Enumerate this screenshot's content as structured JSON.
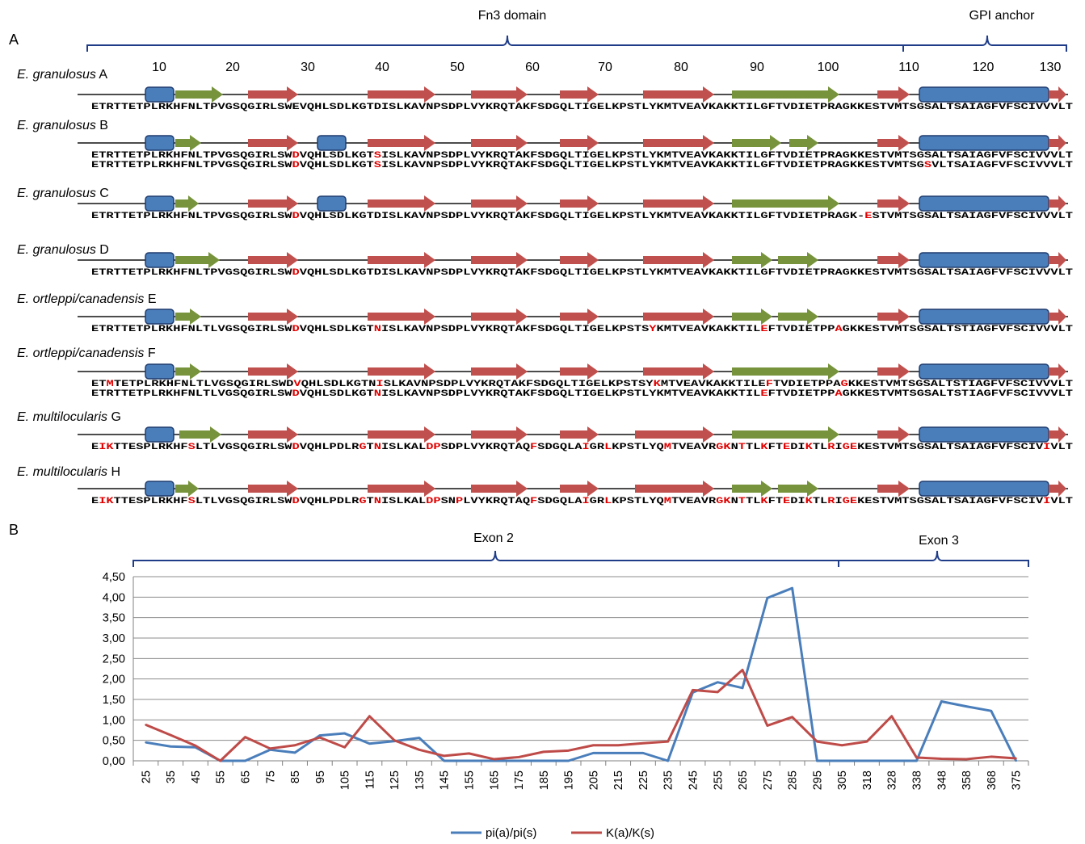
{
  "panels": {
    "a": "A",
    "b": "B"
  },
  "domains": {
    "fn3": "Fn3 domain",
    "gpi": "GPI anchor"
  },
  "positions": [
    "10",
    "20",
    "30",
    "40",
    "50",
    "60",
    "70",
    "80",
    "90",
    "100",
    "110",
    "120",
    "130"
  ],
  "colors": {
    "helix": "#4a7ebb",
    "strand_red": "#c0504d",
    "strand_green": "#77933c",
    "mutation": "#e00000",
    "line_blue": "#4a7ebb",
    "line_red": "#be4b48"
  },
  "rows": [
    {
      "label_italic": "E. granulosus",
      "label_suffix": " A",
      "features": [
        [
          "h",
          180,
          215
        ],
        [
          "g",
          217,
          276
        ],
        [
          "r",
          307,
          369
        ],
        [
          "r",
          455,
          539
        ],
        [
          "r",
          583,
          653
        ],
        [
          "r",
          693,
          741
        ],
        [
          "r",
          796,
          884
        ],
        [
          "g",
          906,
          1039
        ],
        [
          "r",
          1086,
          1126
        ],
        [
          "h",
          1138,
          1298
        ],
        [
          "r",
          1298,
          1320
        ]
      ],
      "seqs": [
        "ETRTTETPLRKHFNLTPVGSQGIRLSWEVQHLSDLKGTDISLKAVNPSDPLVYKRQTAKFSDGQLTIGELKPSTLYKMTVEAVKAKKTILGFTVDIETPRAGKKESTVMTSGSALTSAIAGFVFSCIVVVLT"
      ],
      "muts": [
        []
      ]
    },
    {
      "label_italic": "E. granulosus",
      "label_suffix": " B",
      "features": [
        [
          "h",
          180,
          215
        ],
        [
          "g",
          217,
          249
        ],
        [
          "r",
          307,
          369
        ],
        [
          "h",
          393,
          428
        ],
        [
          "r",
          455,
          539
        ],
        [
          "r",
          583,
          653
        ],
        [
          "r",
          693,
          741
        ],
        [
          "r",
          796,
          884
        ],
        [
          "g",
          906,
          967
        ],
        [
          "g",
          977,
          1013
        ],
        [
          "r",
          1086,
          1126
        ],
        [
          "h",
          1138,
          1298
        ],
        [
          "r",
          1298,
          1320
        ]
      ],
      "seqs": [
        "ETRTTETPLRKHFNLTPVGSQGIRLSWDVQHLSDLKGTSISLKAVNPSDPLVYKRQTAKFSDGQLTIGELKPSTLYKMTVEAVKAKKTILGFTVDIETPRAGKKESTVMTSGSALTSAIAGFVFSCIVVVLT",
        "ETRTTETPLRKHFNLTPVGSQGIRLSWDVQHLSDLKGTSISLKAVNPSDPLVYKRQTAKFSDGQLTIGELKPSTLYKMTVEAVKAKKTILGFTVDIETPRAGKKESTVMTSGSVLTSAIAGFVFSCIVVVLT"
      ],
      "muts": [
        [
          27,
          38
        ],
        [
          27,
          38,
          112
        ]
      ]
    },
    {
      "label_italic": "E. granulosus",
      "label_suffix": " C",
      "features": [
        [
          "h",
          180,
          215
        ],
        [
          "g",
          217,
          246
        ],
        [
          "r",
          307,
          369
        ],
        [
          "h",
          393,
          428
        ],
        [
          "r",
          455,
          539
        ],
        [
          "r",
          583,
          653
        ],
        [
          "r",
          693,
          741
        ],
        [
          "r",
          796,
          884
        ],
        [
          "g",
          906,
          1039
        ],
        [
          "r",
          1086,
          1126
        ],
        [
          "h",
          1138,
          1298
        ],
        [
          "r",
          1298,
          1320
        ]
      ],
      "seqs": [
        "ETRTTETPLRKHFNLTPVGSQGIRLSWDVQHLSDLKGTDISLKAVNPSDPLVYKRQTAKFSDGQLTIGELKPSTLYKMTVEAVKAKKTILGFTVDIETPRAGK-ESTVMTSGSALTSAIAGFVFSCIVVVLT"
      ],
      "muts": [
        [
          27,
          104
        ]
      ]
    },
    {
      "label_italic": "E. granulosus",
      "label_suffix": " D",
      "features": [
        [
          "h",
          180,
          215
        ],
        [
          "g",
          217,
          272
        ],
        [
          "r",
          307,
          369
        ],
        [
          "r",
          455,
          539
        ],
        [
          "r",
          583,
          653
        ],
        [
          "r",
          693,
          741
        ],
        [
          "r",
          796,
          884
        ],
        [
          "g",
          906,
          956
        ],
        [
          "g",
          963,
          1013
        ],
        [
          "r",
          1086,
          1126
        ],
        [
          "h",
          1138,
          1298
        ],
        [
          "r",
          1298,
          1320
        ]
      ],
      "seqs": [
        "ETRTTETPLRKHFNLTPVGSQGIRLSWDVQHLSDLKGTDISLKAVNPSDPLVYKRQTAKFSDGQLTIGELKPSTLYKMTVEAVKAKKTILGFTVDIETPRAGKKESTVMTSGSALTSAIAGFVFSCIVVVLT"
      ],
      "muts": [
        [
          27
        ]
      ]
    },
    {
      "label_italic": "E. ortleppi/canadensis",
      "label_suffix": " E",
      "features": [
        [
          "h",
          180,
          215
        ],
        [
          "g",
          217,
          249
        ],
        [
          "r",
          307,
          369
        ],
        [
          "r",
          455,
          539
        ],
        [
          "r",
          583,
          653
        ],
        [
          "r",
          693,
          741
        ],
        [
          "r",
          796,
          884
        ],
        [
          "g",
          906,
          956
        ],
        [
          "g",
          963,
          1013
        ],
        [
          "r",
          1086,
          1126
        ],
        [
          "h",
          1138,
          1298
        ],
        [
          "r",
          1298,
          1320
        ]
      ],
      "seqs": [
        "ETRTTETPLRKHFNLTLVGSQGIRLSWDVQHLSDLKGTNISLKAVNPSDPLVYKRQTAKFSDGQLTIGELKPSTSYKMTVEAVKAKKTILEFTVDIETPPAGKKESTVMTSGSALTSTIAGFVFSCIVVVLT"
      ],
      "muts": [
        [
          27,
          38,
          75,
          90,
          100
        ]
      ]
    },
    {
      "label_italic": "E. ortleppi/canadensis",
      "label_suffix": " F",
      "features": [
        [
          "h",
          180,
          215
        ],
        [
          "g",
          217,
          249
        ],
        [
          "r",
          307,
          369
        ],
        [
          "r",
          455,
          539
        ],
        [
          "r",
          583,
          653
        ],
        [
          "r",
          693,
          741
        ],
        [
          "r",
          796,
          884
        ],
        [
          "g",
          906,
          1039
        ],
        [
          "r",
          1086,
          1126
        ],
        [
          "h",
          1138,
          1298
        ],
        [
          "r",
          1298,
          1320
        ]
      ],
      "seqs": [
        "ETMTETPLRKHFNLTLVGSQGIRLSWDVQHLSDLKGTNISLKAVNPSDPLVYKRQTAKFSDGQLTIGELKPSTSYKMTVEAVKAKKTILEFTVDIETPPAGKKESTVMTSGSALTSTIAGFVFSCIVVVLT",
        "ETRTTETPLRKHFNLTLVGSQGIRLSWDVQHLSDLKGTNISLKAVNPSDPLVYKRQTAKFSDGQLTIGELKPSTLYKMTVEAVKAKKTILEFTVDIETPPAGKKESTVMTSGSALTSTIAGFVFSCIVVVLT"
      ],
      "muts": [
        [
          2,
          27,
          38,
          75,
          90,
          100
        ],
        [
          27,
          38,
          90,
          100
        ]
      ]
    },
    {
      "label_italic": "E. multilocularis",
      "label_suffix": " G",
      "features": [
        [
          "h",
          180,
          215
        ],
        [
          "g",
          222,
          274
        ],
        [
          "r",
          307,
          369
        ],
        [
          "r",
          455,
          539
        ],
        [
          "r",
          583,
          653
        ],
        [
          "r",
          693,
          741
        ],
        [
          "r",
          786,
          884
        ],
        [
          "g",
          906,
          1039
        ],
        [
          "r",
          1086,
          1126
        ],
        [
          "h",
          1138,
          1298
        ],
        [
          "r",
          1298,
          1320
        ]
      ],
      "seqs": [
        "EIKTTESPLRKHFSLTLVGSQGIRLSWDVQHLPDLRGTNISLKALDPSDPLVYKRQTAQFSDGQLAIGRLKPSTLYQMTVEAVRGKNTTLKFTEDIKTLRIGEKESTVMTSGSALTSAIAGFVFSCIVIVLT"
      ],
      "muts": [
        [
          1,
          2,
          13,
          27,
          36,
          38,
          45,
          46,
          59,
          66,
          69,
          77,
          84,
          85,
          87,
          90,
          93,
          96,
          99,
          101,
          102,
          128
        ]
      ]
    },
    {
      "label_italic": "E. multilocularis",
      "label_suffix": " H",
      "features": [
        [
          "h",
          180,
          215
        ],
        [
          "g",
          217,
          246
        ],
        [
          "r",
          307,
          369
        ],
        [
          "r",
          455,
          539
        ],
        [
          "r",
          583,
          653
        ],
        [
          "r",
          693,
          741
        ],
        [
          "r",
          786,
          884
        ],
        [
          "g",
          906,
          956
        ],
        [
          "g",
          963,
          1013
        ],
        [
          "r",
          1086,
          1126
        ],
        [
          "h",
          1138,
          1298
        ],
        [
          "r",
          1298,
          1320
        ]
      ],
      "seqs": [
        "EIKTTESPLRKHFSLTLVGSQGIRLSWDVQHLPDLRGTNISLKALDPSNPLVYKRQTAQFSDGQLAIGRLKPSTLYQMTVEAVRGKNTTLKFTEDIKTLRIGEKESTVMTSGSALTSAIAGFVFSCIVIVLT"
      ],
      "muts": [
        [
          1,
          2,
          13,
          27,
          36,
          38,
          45,
          46,
          49,
          59,
          66,
          69,
          77,
          84,
          85,
          87,
          90,
          93,
          96,
          99,
          101,
          102,
          128
        ]
      ]
    }
  ],
  "exons": {
    "e2": "Exon 2",
    "e3": "Exon 3"
  },
  "chart_data": {
    "type": "line",
    "categories": [
      "25",
      "35",
      "45",
      "55",
      "65",
      "75",
      "85",
      "95",
      "105",
      "115",
      "125",
      "135",
      "145",
      "155",
      "165",
      "175",
      "185",
      "195",
      "205",
      "215",
      "225",
      "235",
      "245",
      "255",
      "265",
      "275",
      "285",
      "295",
      "305",
      "318",
      "328",
      "338",
      "348",
      "358",
      "368",
      "375"
    ],
    "ylim": [
      0,
      4.5
    ],
    "yticks": [
      "0,00",
      "0,50",
      "1,00",
      "1,50",
      "2,00",
      "2,50",
      "3,00",
      "3,50",
      "4,00",
      "4,50"
    ],
    "grid": true,
    "legend_position": "bottom",
    "series": [
      {
        "name": "pi(a)/pi(s)",
        "color": "#4a7ebb",
        "values": [
          0.45,
          0.35,
          0.33,
          0.0,
          0.0,
          0.27,
          0.2,
          0.62,
          0.67,
          0.42,
          0.48,
          0.56,
          0.0,
          0.0,
          0.0,
          0.0,
          0.0,
          0.0,
          0.19,
          0.19,
          0.19,
          0.0,
          1.67,
          1.92,
          1.78,
          3.98,
          4.22,
          0.0,
          0.0,
          0.0,
          0.0,
          0.0,
          1.45,
          1.33,
          1.22,
          0.0
        ]
      },
      {
        "name": "K(a)/K(s)",
        "color": "#be4b48",
        "values": [
          0.88,
          0.63,
          0.37,
          0.0,
          0.58,
          0.3,
          0.38,
          0.57,
          0.33,
          1.09,
          0.5,
          0.27,
          0.12,
          0.18,
          0.04,
          0.09,
          0.22,
          0.25,
          0.38,
          0.38,
          0.43,
          0.47,
          1.73,
          1.68,
          2.22,
          0.86,
          1.07,
          0.47,
          0.38,
          0.47,
          1.09,
          0.08,
          0.05,
          0.04,
          0.1,
          0.06
        ]
      }
    ]
  }
}
